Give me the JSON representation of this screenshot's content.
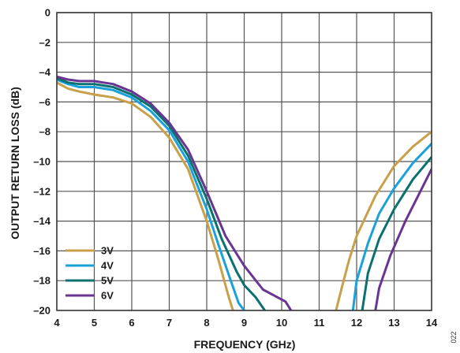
{
  "chart_data": {
    "type": "line",
    "xlabel": "FREQUENCY (GHz)",
    "ylabel": "OUTPUT RETURN LOSS (dB)",
    "xlim": [
      4,
      14
    ],
    "ylim": [
      -20,
      0
    ],
    "xticks": [
      4,
      5,
      6,
      7,
      8,
      9,
      10,
      11,
      12,
      13,
      14
    ],
    "yticks": [
      0,
      -2,
      -4,
      -6,
      -8,
      -10,
      -12,
      -14,
      -16,
      -18,
      -20
    ],
    "xtick_labels": [
      "4",
      "5",
      "6",
      "7",
      "8",
      "9",
      "10",
      "11",
      "12",
      "13",
      "14"
    ],
    "ytick_labels": [
      "0",
      "–2",
      "–4",
      "–6",
      "–8",
      "–10",
      "–12",
      "–14",
      "–16",
      "–18",
      "–20"
    ],
    "grid": true,
    "legend_position": "bottom-left",
    "figure_code": "022",
    "series": [
      {
        "name": "3V",
        "color": "#c9a04a",
        "segments": [
          [
            [
              4.0,
              -4.7
            ],
            [
              4.3,
              -5.1
            ],
            [
              4.6,
              -5.3
            ],
            [
              5.0,
              -5.5
            ],
            [
              5.5,
              -5.7
            ],
            [
              6.0,
              -6.1
            ],
            [
              6.5,
              -7.0
            ],
            [
              7.0,
              -8.4
            ],
            [
              7.5,
              -10.5
            ],
            [
              8.0,
              -14.0
            ],
            [
              8.3,
              -16.5
            ],
            [
              8.6,
              -19.2
            ],
            [
              8.7,
              -20.0
            ]
          ],
          [
            [
              11.45,
              -20.0
            ],
            [
              11.6,
              -18.5
            ],
            [
              11.8,
              -16.6
            ],
            [
              12.0,
              -15.0
            ],
            [
              12.5,
              -12.3
            ],
            [
              13.0,
              -10.3
            ],
            [
              13.5,
              -9.0
            ],
            [
              14.0,
              -8.0
            ]
          ]
        ]
      },
      {
        "name": "4V",
        "color": "#1ba1da",
        "segments": [
          [
            [
              4.0,
              -4.5
            ],
            [
              4.3,
              -4.8
            ],
            [
              4.6,
              -5.0
            ],
            [
              5.0,
              -5.0
            ],
            [
              5.5,
              -5.2
            ],
            [
              6.0,
              -5.7
            ],
            [
              6.5,
              -6.6
            ],
            [
              7.0,
              -7.9
            ],
            [
              7.5,
              -10.0
            ],
            [
              8.0,
              -13.2
            ],
            [
              8.3,
              -15.5
            ],
            [
              8.6,
              -17.7
            ],
            [
              8.85,
              -19.5
            ],
            [
              9.0,
              -20.0
            ]
          ],
          [
            [
              11.9,
              -20.0
            ],
            [
              12.0,
              -18.0
            ],
            [
              12.3,
              -15.5
            ],
            [
              12.6,
              -13.5
            ],
            [
              13.0,
              -11.8
            ],
            [
              13.5,
              -10.1
            ],
            [
              14.0,
              -8.8
            ]
          ]
        ]
      },
      {
        "name": "5V",
        "color": "#0b7070",
        "segments": [
          [
            [
              4.0,
              -4.4
            ],
            [
              4.3,
              -4.7
            ],
            [
              4.6,
              -4.8
            ],
            [
              5.0,
              -4.8
            ],
            [
              5.5,
              -5.0
            ],
            [
              6.0,
              -5.5
            ],
            [
              6.5,
              -6.3
            ],
            [
              7.0,
              -7.6
            ],
            [
              7.5,
              -9.6
            ],
            [
              8.0,
              -12.5
            ],
            [
              8.4,
              -15.2
            ],
            [
              8.8,
              -17.4
            ],
            [
              9.0,
              -18.3
            ],
            [
              9.3,
              -19.1
            ],
            [
              9.55,
              -20.0
            ]
          ],
          [
            [
              12.15,
              -20.0
            ],
            [
              12.3,
              -17.5
            ],
            [
              12.6,
              -15.2
            ],
            [
              13.0,
              -13.2
            ],
            [
              13.5,
              -11.2
            ],
            [
              14.0,
              -9.7
            ]
          ]
        ]
      },
      {
        "name": "6V",
        "color": "#6a3592",
        "segments": [
          [
            [
              4.0,
              -4.3
            ],
            [
              4.3,
              -4.5
            ],
            [
              4.6,
              -4.6
            ],
            [
              5.0,
              -4.6
            ],
            [
              5.5,
              -4.8
            ],
            [
              6.0,
              -5.3
            ],
            [
              6.5,
              -6.1
            ],
            [
              7.0,
              -7.4
            ],
            [
              7.5,
              -9.2
            ],
            [
              8.0,
              -12.0
            ],
            [
              8.5,
              -15.0
            ],
            [
              9.0,
              -17.0
            ],
            [
              9.5,
              -18.6
            ],
            [
              9.8,
              -19.0
            ],
            [
              10.1,
              -19.4
            ],
            [
              10.25,
              -20.0
            ]
          ],
          [
            [
              12.5,
              -20.0
            ],
            [
              12.6,
              -18.5
            ],
            [
              12.9,
              -16.3
            ],
            [
              13.3,
              -14.0
            ],
            [
              13.7,
              -12.0
            ],
            [
              14.0,
              -10.5
            ]
          ]
        ]
      }
    ]
  }
}
